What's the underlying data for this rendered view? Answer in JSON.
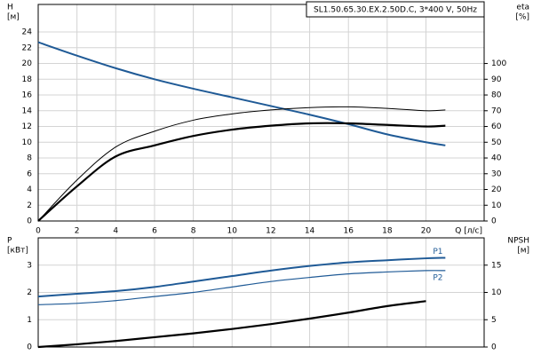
{
  "chart_data": [
    {
      "type": "line",
      "title": "SL1.50.65.30.EX.2.50D.C, 3*400 V, 50Hz",
      "x": [
        0,
        2,
        4,
        6,
        8,
        10,
        12,
        14,
        16,
        18,
        20,
        21
      ],
      "xlim": [
        0,
        23
      ],
      "xticks": [
        0,
        2,
        4,
        6,
        8,
        10,
        12,
        14,
        16,
        18,
        20
      ],
      "xlabel": "Q [л/с]",
      "ylabel": "H",
      "yunit": "[м]",
      "ylim": [
        0,
        27.5
      ],
      "yticks": [
        0,
        2,
        4,
        6,
        8,
        10,
        12,
        14,
        16,
        18,
        20,
        22,
        24
      ],
      "y2label": "eta",
      "y2unit": "[%]",
      "y2lim": [
        0,
        137.5
      ],
      "y2ticks": [
        0,
        10,
        20,
        30,
        40,
        50,
        60,
        70,
        80,
        90,
        100
      ],
      "grid": true,
      "series": [
        {
          "color": "#1f5a96",
          "linewidth": 2,
          "values": [
            22.7,
            21.0,
            19.4,
            18.0,
            16.8,
            15.7,
            14.6,
            13.5,
            12.3,
            11.0,
            10.0,
            9.6
          ]
        },
        {
          "color": "#000000",
          "linewidth": 1,
          "axis": "y2",
          "values": [
            0,
            26,
            47,
            57,
            64,
            68,
            70.5,
            72,
            72.5,
            71.5,
            70,
            70.5
          ]
        },
        {
          "color": "#000000",
          "linewidth": 2.2,
          "axis": "y2",
          "values": [
            0,
            22,
            41,
            48,
            54,
            58,
            60.5,
            62,
            62,
            61,
            60,
            60.5
          ]
        }
      ]
    },
    {
      "type": "line",
      "x": [
        0,
        2,
        4,
        6,
        8,
        10,
        12,
        14,
        16,
        18,
        20,
        21
      ],
      "xlim": [
        0,
        23
      ],
      "xticks": [
        0,
        2,
        4,
        6,
        8,
        10,
        12,
        14,
        16,
        18,
        20
      ],
      "show_xtick_labels": false,
      "ylabel": "P",
      "yunit": "[кВт]",
      "ylim": [
        0,
        4
      ],
      "yticks": [
        0,
        1,
        2,
        3
      ],
      "y2label": "NPSH",
      "y2unit": "[м]",
      "y2lim": [
        0,
        20
      ],
      "y2ticks": [
        0,
        5,
        10,
        15
      ],
      "grid": true,
      "series": [
        {
          "name": "P1",
          "color": "#1f5a96",
          "linewidth": 2,
          "values": [
            1.85,
            1.95,
            2.05,
            2.2,
            2.4,
            2.6,
            2.8,
            2.97,
            3.1,
            3.18,
            3.25,
            3.27
          ]
        },
        {
          "name": "P2",
          "color": "#1f5a96",
          "linewidth": 1.2,
          "values": [
            1.55,
            1.6,
            1.7,
            1.85,
            2.0,
            2.2,
            2.4,
            2.55,
            2.68,
            2.75,
            2.8,
            2.8
          ]
        },
        {
          "color": "#000000",
          "linewidth": 2.2,
          "axis": "y2",
          "values": [
            0,
            0.5,
            1.1,
            1.8,
            2.5,
            3.3,
            4.2,
            5.2,
            6.3,
            7.5,
            8.4,
            null
          ]
        }
      ]
    }
  ]
}
